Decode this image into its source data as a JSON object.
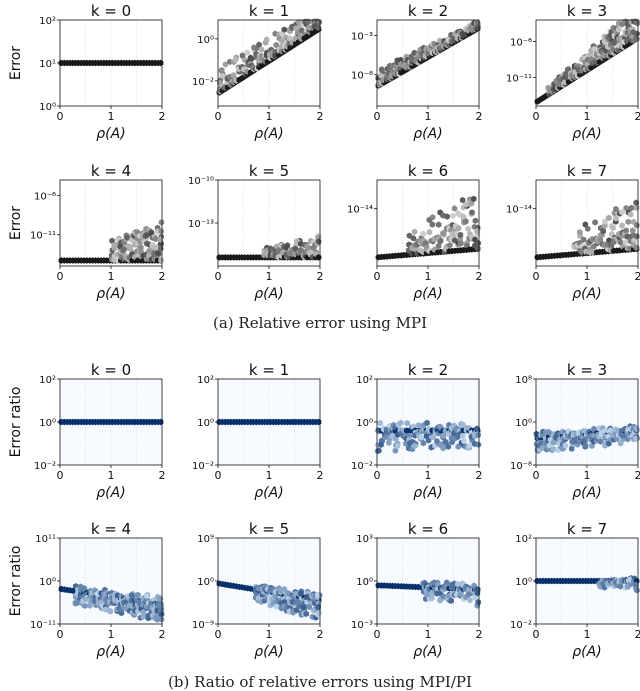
{
  "figure": {
    "caption_a": "(a) Relative error using MPI",
    "caption_b": "(b) Ratio of relative errors using MPI/PI"
  },
  "chart_data": [
    {
      "type": "heatmap",
      "group": "a",
      "title": "k = 0",
      "ylabel": "Error",
      "xlabel": "ρ(A)",
      "xlim": [
        0,
        2
      ],
      "xticks": [
        "0",
        "1",
        "2"
      ],
      "yscale": "log",
      "ylim_exp": [
        0,
        2
      ],
      "yticks": [
        {
          "exp": 0,
          "label": "10⁰"
        },
        {
          "exp": 1,
          "label": "10¹"
        },
        {
          "exp": 2,
          "label": "10²"
        }
      ],
      "profile": {
        "base": [
          1,
          1
        ],
        "spread": [
          0,
          0
        ],
        "onset": 2
      }
    },
    {
      "type": "heatmap",
      "group": "a",
      "title": "k = 1",
      "ylabel": "",
      "xlabel": "ρ(A)",
      "xlim": [
        0,
        2
      ],
      "xticks": [
        "0",
        "1",
        "2"
      ],
      "yscale": "log",
      "ylim_exp": [
        -3.2,
        0.9
      ],
      "yticks": [
        {
          "exp": -2,
          "label": "10⁻²"
        },
        {
          "exp": 0,
          "label": "10⁰"
        }
      ],
      "profile": {
        "base": [
          -2.6,
          0.5
        ],
        "spread": [
          1.2,
          0.8
        ],
        "onset": 0
      }
    },
    {
      "type": "heatmap",
      "group": "a",
      "title": "k = 2",
      "ylabel": "",
      "xlabel": "ρ(A)",
      "xlim": [
        0,
        2
      ],
      "xticks": [
        "0",
        "1",
        "2"
      ],
      "yscale": "log",
      "ylim_exp": [
        -12,
        -1
      ],
      "yticks": [
        {
          "exp": -8,
          "label": "10⁻⁸"
        },
        {
          "exp": -3,
          "label": "10⁻³"
        }
      ],
      "profile": {
        "base": [
          -9.5,
          -2
        ],
        "spread": [
          1.8,
          0.8
        ],
        "onset": 0
      }
    },
    {
      "type": "heatmap",
      "group": "a",
      "title": "k = 3",
      "ylabel": "",
      "xlabel": "ρ(A)",
      "xlim": [
        0,
        2
      ],
      "xticks": [
        "0",
        "1",
        "2"
      ],
      "yscale": "log",
      "ylim_exp": [
        -15,
        -3
      ],
      "yticks": [
        {
          "exp": -11,
          "label": "10⁻¹¹"
        },
        {
          "exp": -6,
          "label": "10⁻⁶"
        }
      ],
      "profile": {
        "base": [
          -14.5,
          -5.5
        ],
        "spread": [
          0.5,
          4
        ],
        "onset": 0.2
      }
    },
    {
      "type": "heatmap",
      "group": "a",
      "title": "k = 4",
      "ylabel": "Error",
      "xlabel": "ρ(A)",
      "xlim": [
        0,
        2
      ],
      "xticks": [
        "0",
        "1",
        "2"
      ],
      "yscale": "log",
      "ylim_exp": [
        -15,
        -4
      ],
      "yticks": [
        {
          "exp": -11,
          "label": "10⁻¹¹"
        },
        {
          "exp": -6,
          "label": "10⁻⁶"
        }
      ],
      "profile": {
        "base": [
          -14.3,
          -14.3
        ],
        "spread": [
          0,
          4.5
        ],
        "onset": 1.0
      }
    },
    {
      "type": "heatmap",
      "group": "a",
      "title": "k = 5",
      "ylabel": "",
      "xlabel": "ρ(A)",
      "xlim": [
        0,
        2
      ],
      "xticks": [
        "0",
        "1",
        "2"
      ],
      "yscale": "log",
      "ylim_exp": [
        -16,
        -10
      ],
      "yticks": [
        {
          "exp": -13,
          "label": "10⁻¹³"
        },
        {
          "exp": -10,
          "label": "10⁻¹⁰"
        }
      ],
      "profile": {
        "base": [
          -15.4,
          -15.4
        ],
        "spread": [
          0,
          1.4
        ],
        "onset": 0.9
      }
    },
    {
      "type": "heatmap",
      "group": "a",
      "title": "k = 6",
      "ylabel": "",
      "xlabel": "ρ(A)",
      "xlim": [
        0,
        2
      ],
      "xticks": [
        "0",
        "1",
        "2"
      ],
      "yscale": "log",
      "ylim_exp": [
        -16,
        -13
      ],
      "yticks": [
        {
          "exp": -14,
          "label": "10⁻¹⁴"
        }
      ],
      "profile": {
        "base": [
          -15.7,
          -15.4
        ],
        "spread": [
          0.3,
          1.8
        ],
        "onset": 0.6
      }
    },
    {
      "type": "heatmap",
      "group": "a",
      "title": "k = 7",
      "ylabel": "",
      "xlabel": "ρ(A)",
      "xlim": [
        0,
        2
      ],
      "xticks": [
        "0",
        "1",
        "2"
      ],
      "yscale": "log",
      "ylim_exp": [
        -16,
        -13
      ],
      "yticks": [
        {
          "exp": -14,
          "label": "10⁻¹⁴"
        }
      ],
      "profile": {
        "base": [
          -15.7,
          -15.4
        ],
        "spread": [
          0.3,
          1.6
        ],
        "onset": 0.7
      }
    },
    {
      "type": "heatmap",
      "group": "b",
      "title": "k = 0",
      "ylabel": "Error ratio",
      "xlabel": "ρ(A)",
      "xlim": [
        0,
        2
      ],
      "xticks": [
        "0",
        "1",
        "2"
      ],
      "yscale": "log",
      "ylim_exp": [
        -2,
        2
      ],
      "yticks": [
        {
          "exp": -2,
          "label": "10⁻²"
        },
        {
          "exp": 0,
          "label": "10⁰"
        },
        {
          "exp": 2,
          "label": "10²"
        }
      ],
      "profile": {
        "base": [
          0,
          0
        ],
        "spread": [
          0,
          0
        ],
        "onset": 2
      }
    },
    {
      "type": "heatmap",
      "group": "b",
      "title": "k = 1",
      "ylabel": "",
      "xlabel": "ρ(A)",
      "xlim": [
        0,
        2
      ],
      "xticks": [
        "0",
        "1",
        "2"
      ],
      "yscale": "log",
      "ylim_exp": [
        -2,
        2
      ],
      "yticks": [
        {
          "exp": -2,
          "label": "10⁻²"
        },
        {
          "exp": 0,
          "label": "10⁰"
        },
        {
          "exp": 2,
          "label": "10²"
        }
      ],
      "profile": {
        "base": [
          0,
          0
        ],
        "spread": [
          0,
          0
        ],
        "onset": 2
      }
    },
    {
      "type": "heatmap",
      "group": "b",
      "title": "k = 2",
      "ylabel": "",
      "xlabel": "ρ(A)",
      "xlim": [
        0,
        2
      ],
      "xticks": [
        "0",
        "1",
        "2"
      ],
      "yscale": "log",
      "ylim_exp": [
        -2,
        2
      ],
      "yticks": [
        {
          "exp": -2,
          "label": "10⁻²"
        },
        {
          "exp": 0,
          "label": "10⁰"
        },
        {
          "exp": 2,
          "label": "10²"
        }
      ],
      "profile": {
        "base": [
          -0.4,
          -0.4
        ],
        "spread": [
          0.9,
          0.7
        ],
        "onset": 0
      }
    },
    {
      "type": "heatmap",
      "group": "b",
      "title": "k = 3",
      "ylabel": "",
      "xlabel": "ρ(A)",
      "xlim": [
        0,
        2
      ],
      "xticks": [
        "0",
        "1",
        "2"
      ],
      "yscale": "log",
      "ylim_exp": [
        -8,
        8
      ],
      "yticks": [
        {
          "exp": -8,
          "label": "10⁻⁸"
        },
        {
          "exp": 0,
          "label": "10⁰"
        },
        {
          "exp": 8,
          "label": "10⁸"
        }
      ],
      "profile": {
        "base": [
          -3,
          -1.5
        ],
        "spread": [
          2.5,
          2
        ],
        "onset": 0
      }
    },
    {
      "type": "heatmap",
      "group": "b",
      "title": "k = 4",
      "ylabel": "Error ratio",
      "xlabel": "ρ(A)",
      "xlim": [
        0,
        2
      ],
      "xticks": [
        "0",
        "1",
        "2"
      ],
      "yscale": "log",
      "ylim_exp": [
        -11,
        11
      ],
      "yticks": [
        {
          "exp": -11,
          "label": "10⁻¹¹"
        },
        {
          "exp": 0,
          "label": "10⁰"
        },
        {
          "exp": 11,
          "label": "10¹¹"
        }
      ],
      "profile": {
        "base": [
          -2,
          -6
        ],
        "spread": [
          3,
          4
        ],
        "onset": 0.3
      }
    },
    {
      "type": "heatmap",
      "group": "b",
      "title": "k = 5",
      "ylabel": "",
      "xlabel": "ρ(A)",
      "xlim": [
        0,
        2
      ],
      "xticks": [
        "0",
        "1",
        "2"
      ],
      "yscale": "log",
      "ylim_exp": [
        -9,
        9
      ],
      "yticks": [
        {
          "exp": -9,
          "label": "10⁻⁹"
        },
        {
          "exp": 0,
          "label": "10⁰"
        },
        {
          "exp": 9,
          "label": "10⁹"
        }
      ],
      "profile": {
        "base": [
          -0.5,
          -4
        ],
        "spread": [
          1,
          4
        ],
        "onset": 0.7
      }
    },
    {
      "type": "heatmap",
      "group": "b",
      "title": "k = 6",
      "ylabel": "",
      "xlabel": "ρ(A)",
      "xlim": [
        0,
        2
      ],
      "xticks": [
        "0",
        "1",
        "2"
      ],
      "yscale": "log",
      "ylim_exp": [
        -3,
        3
      ],
      "yticks": [
        {
          "exp": -3,
          "label": "10⁻³"
        },
        {
          "exp": 0,
          "label": "10⁰"
        },
        {
          "exp": 3,
          "label": "10³"
        }
      ],
      "profile": {
        "base": [
          -0.3,
          -0.6
        ],
        "spread": [
          0.6,
          1
        ],
        "onset": 0.9
      }
    },
    {
      "type": "heatmap",
      "group": "b",
      "title": "k = 7",
      "ylabel": "",
      "xlabel": "ρ(A)",
      "xlim": [
        0,
        2
      ],
      "xticks": [
        "0",
        "1",
        "2"
      ],
      "yscale": "log",
      "ylim_exp": [
        -2,
        2
      ],
      "yticks": [
        {
          "exp": -2,
          "label": "10⁻²"
        },
        {
          "exp": 0,
          "label": "10⁰"
        },
        {
          "exp": 2,
          "label": "10²"
        }
      ],
      "profile": {
        "base": [
          0,
          0
        ],
        "spread": [
          0,
          0.4
        ],
        "onset": 1.2
      }
    }
  ],
  "colors": {
    "a_dark": "#1a1a1a",
    "a_light": "#d9d9d9",
    "b_dark": "#08306b",
    "b_light": "#c6dbef",
    "b_background": "#f7fbff",
    "grid": "#cccccc"
  }
}
